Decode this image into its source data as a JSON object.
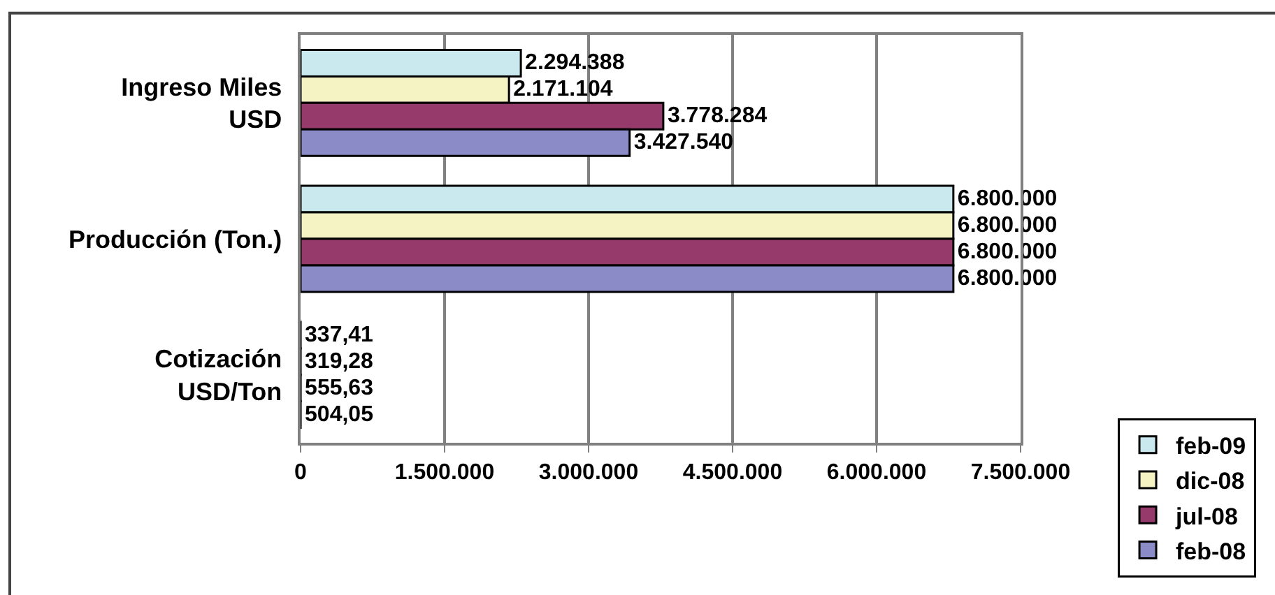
{
  "chart_data": {
    "type": "bar",
    "orientation": "horizontal",
    "categories": [
      "Ingreso Miles\nUSD",
      "Producción (Ton.)",
      "Cotización\nUSD/Ton"
    ],
    "series": [
      {
        "name": "feb-09",
        "color": "#c9e9ef",
        "values": [
          2294388,
          6800000,
          337.41
        ],
        "value_labels": [
          "2.294.388",
          "6.800.000",
          "337,41"
        ]
      },
      {
        "name": "dic-08",
        "color": "#f5f2c4",
        "values": [
          2171104,
          6800000,
          319.28
        ],
        "value_labels": [
          "2.171.104",
          "6.800.000",
          "319,28"
        ]
      },
      {
        "name": "jul-08",
        "color": "#953a6a",
        "values": [
          3778284,
          6800000,
          555.63
        ],
        "value_labels": [
          "3.778.284",
          "6.800.000",
          "555,63"
        ]
      },
      {
        "name": "feb-08",
        "color": "#8b8bc8",
        "values": [
          3427540,
          6800000,
          504.05
        ],
        "value_labels": [
          "3.427.540",
          "6.800.000",
          "504,05"
        ]
      }
    ],
    "xlim": [
      0,
      7500000
    ],
    "xticks": [
      0,
      {
        "value": 1500000,
        "label": "1.500.000"
      },
      {
        "value": 3000000,
        "label": "3.000.000"
      },
      {
        "value": 4500000,
        "label": "4.500.000"
      },
      {
        "value": 6000000,
        "label": "6.000.000"
      },
      {
        "value": 7500000,
        "label": "7.500.000"
      }
    ],
    "grid": "x",
    "legend": "bottom right"
  }
}
